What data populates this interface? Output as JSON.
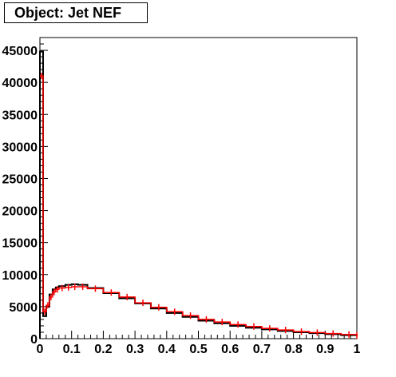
{
  "chart_data": {
    "type": "line",
    "title": "Object: Jet NEF",
    "xlim": [
      0,
      1
    ],
    "ylim": [
      0,
      47000
    ],
    "grid": false,
    "legend": "none",
    "xticks": [
      "0",
      "0.1",
      "0.2",
      "0.3",
      "0.4",
      "0.5",
      "0.6",
      "0.7",
      "0.8",
      "0.9",
      "1"
    ],
    "yticks": [
      "0",
      "5000",
      "10000",
      "15000",
      "20000",
      "25000",
      "30000",
      "35000",
      "40000",
      "45000"
    ],
    "series": [
      {
        "color": "#000000",
        "style": "step",
        "x": [
          0.0,
          0.01,
          0.02,
          0.03,
          0.04,
          0.05,
          0.06,
          0.08,
          0.1,
          0.12,
          0.15,
          0.2,
          0.25,
          0.3,
          0.35,
          0.4,
          0.45,
          0.5,
          0.55,
          0.6,
          0.65,
          0.7,
          0.75,
          0.8,
          0.85,
          0.9,
          0.95,
          1.0
        ],
        "y": [
          44800,
          3500,
          5000,
          6900,
          7700,
          8000,
          8200,
          8400,
          8500,
          8400,
          7900,
          7100,
          6300,
          5500,
          4700,
          4000,
          3400,
          2800,
          2400,
          2000,
          1700,
          1450,
          1200,
          1000,
          850,
          700,
          550,
          450
        ]
      },
      {
        "color": "#ff0000",
        "style": "errorbar",
        "x": [
          0.0,
          0.01,
          0.02,
          0.03,
          0.04,
          0.05,
          0.06,
          0.08,
          0.1,
          0.12,
          0.15,
          0.2,
          0.25,
          0.3,
          0.35,
          0.4,
          0.45,
          0.5,
          0.55,
          0.6,
          0.65,
          0.7,
          0.75,
          0.8,
          0.85,
          0.9,
          0.95,
          1.0
        ],
        "y": [
          41000,
          4200,
          5200,
          6500,
          7300,
          7700,
          7900,
          8000,
          8100,
          8100,
          7800,
          7200,
          6500,
          5600,
          4900,
          4200,
          3600,
          3000,
          2600,
          2200,
          1900,
          1600,
          1350,
          1100,
          950,
          800,
          650,
          500
        ]
      }
    ]
  }
}
